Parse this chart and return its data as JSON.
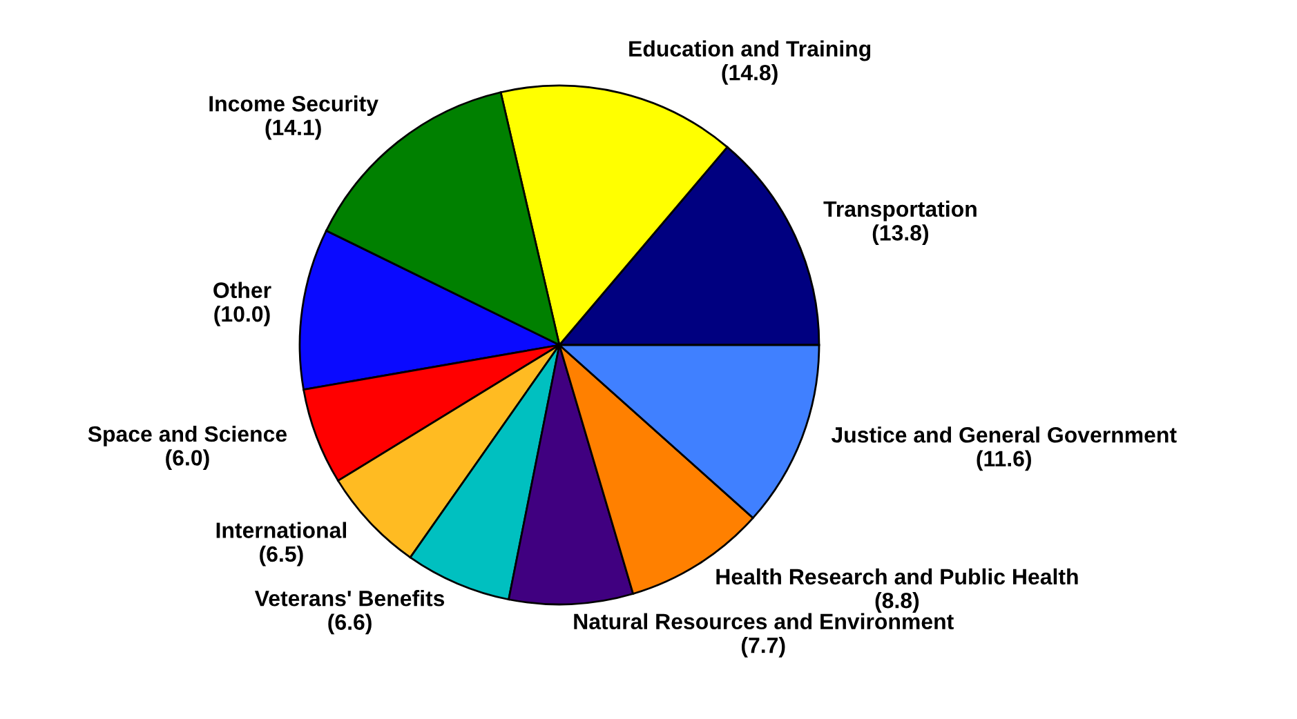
{
  "chart_data": {
    "type": "pie",
    "categories": [
      "Transportation",
      "Education and Training",
      "Income Security",
      "Other",
      "Space and Science",
      "International",
      "Veterans' Benefits",
      "Natural Resources and Environment",
      "Health Research and Public Health",
      "Justice and General Government"
    ],
    "values": [
      13.8,
      14.8,
      14.1,
      10.0,
      6.0,
      6.5,
      6.6,
      7.7,
      8.8,
      11.6
    ],
    "value_labels": [
      "(13.8)",
      "(14.8)",
      "(14.1)",
      "(10.0)",
      "(6.0)",
      "(6.5)",
      "(6.6)",
      "(7.7)",
      "(8.8)",
      "(11.6)"
    ],
    "colors": [
      "#000080",
      "#ffff00",
      "#008000",
      "#0a0aff",
      "#ff0000",
      "#ffbb22",
      "#00c0c0",
      "#400080",
      "#ff8000",
      "#4080ff"
    ]
  }
}
